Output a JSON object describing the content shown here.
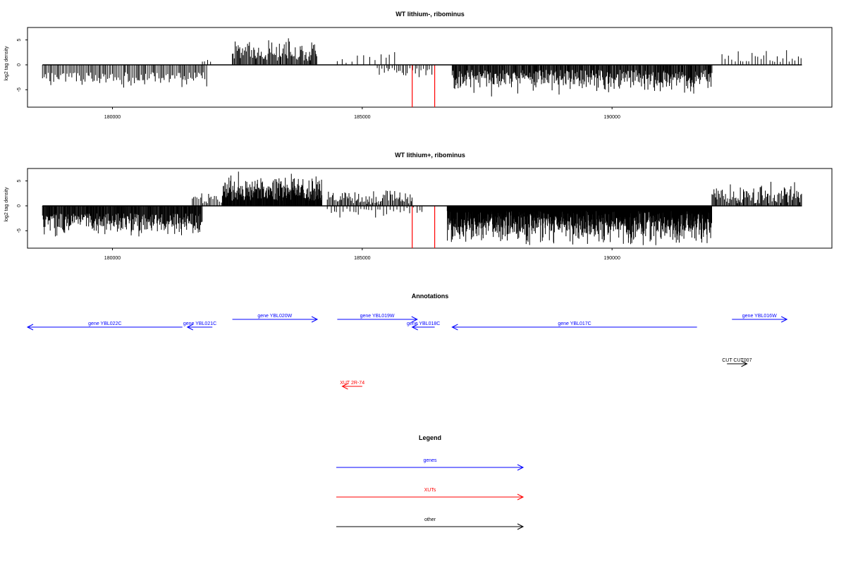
{
  "colors": {
    "genes": "#0000ff",
    "xuts": "#ff0000",
    "other": "#000000",
    "bars": "#000000"
  },
  "chart_data": [
    {
      "type": "bar",
      "title": "WT lithium-, ribominus",
      "xlabel": "",
      "ylabel": "log2 tag density",
      "xlim": [
        178300,
        194400
      ],
      "ylim": [
        -8.5,
        7.5
      ],
      "x_ticks": [
        180000,
        185000,
        190000
      ],
      "y_ticks": [
        5,
        0,
        -5
      ],
      "grid": false,
      "series": [
        {
          "values_description": "",
          "segments": [
            {
              "start": 178600,
              "end": 181900,
              "sign": -1,
              "min": 1.5,
              "max": 4.7,
              "step": 28
            },
            {
              "start": 181800,
              "end": 182000,
              "sign": 1,
              "min": 0.5,
              "max": 2.8,
              "step": 45
            },
            {
              "start": 182400,
              "end": 184100,
              "sign": 1,
              "min": 0.8,
              "max": 6.0,
              "step": 18
            },
            {
              "start": 184500,
              "end": 185700,
              "sign": 1,
              "min": 0.3,
              "max": 3.0,
              "step": 90
            },
            {
              "start": 185300,
              "end": 186400,
              "sign": -1,
              "min": 0.6,
              "max": 3.2,
              "step": 40
            },
            {
              "start": 186800,
              "end": 192000,
              "sign": -1,
              "min": 1.0,
              "max": 6.5,
              "step": 14
            },
            {
              "start": 192200,
              "end": 193800,
              "sign": 1,
              "min": 0.5,
              "max": 3.3,
              "step": 55
            }
          ],
          "highlight": [
            {
              "x": 186000,
              "value": -8.5
            },
            {
              "x": 186450,
              "value": -8.5
            }
          ]
        }
      ]
    },
    {
      "type": "bar",
      "title": "WT lithium+, ribominus",
      "xlabel": "",
      "ylabel": "log2 tag density",
      "xlim": [
        178300,
        194400
      ],
      "ylim": [
        -8.5,
        7.5
      ],
      "x_ticks": [
        180000,
        185000,
        190000
      ],
      "y_ticks": [
        5,
        0,
        -5
      ],
      "grid": false,
      "series": [
        {
          "values_description": "",
          "segments": [
            {
              "start": 178600,
              "end": 181800,
              "sign": -1,
              "min": 1.5,
              "max": 6.5,
              "step": 12
            },
            {
              "start": 181600,
              "end": 182200,
              "sign": 1,
              "min": 0.5,
              "max": 3.3,
              "step": 30
            },
            {
              "start": 182200,
              "end": 184200,
              "sign": 1,
              "min": 1.0,
              "max": 7.2,
              "step": 9
            },
            {
              "start": 184300,
              "end": 186000,
              "sign": 1,
              "min": 0.3,
              "max": 4.2,
              "step": 22
            },
            {
              "start": 184300,
              "end": 186200,
              "sign": -1,
              "min": 0.3,
              "max": 2.6,
              "step": 60
            },
            {
              "start": 186700,
              "end": 192000,
              "sign": -1,
              "min": 1.0,
              "max": 8.2,
              "step": 6
            },
            {
              "start": 192000,
              "end": 193800,
              "sign": 1,
              "min": 0.5,
              "max": 5.0,
              "step": 18
            }
          ],
          "highlight": [
            {
              "x": 186000,
              "value": -8.5
            },
            {
              "x": 186450,
              "value": -8.5
            }
          ]
        }
      ]
    }
  ],
  "annotations": {
    "title": "Annotations",
    "items": [
      {
        "label": "gene YBL022C",
        "type": "gene",
        "start": 178300,
        "end": 181400,
        "strand": "-",
        "row": 2
      },
      {
        "label": "gene YBL021C",
        "type": "gene",
        "start": 181500,
        "end": 182000,
        "strand": "-",
        "row": 2
      },
      {
        "label": "gene YBL020W",
        "type": "gene",
        "start": 182400,
        "end": 184100,
        "strand": "+",
        "row": 1
      },
      {
        "label": "gene YBL019W",
        "type": "gene",
        "start": 184500,
        "end": 186100,
        "strand": "+",
        "row": 1
      },
      {
        "label": "gene YBL018C",
        "type": "gene",
        "start": 186000,
        "end": 186450,
        "strand": "-",
        "row": 2
      },
      {
        "label": "gene YBL017C",
        "type": "gene",
        "start": 186800,
        "end": 191700,
        "strand": "-",
        "row": 2
      },
      {
        "label": "gene YBL016W",
        "type": "gene",
        "start": 192400,
        "end": 193500,
        "strand": "+",
        "row": 1
      },
      {
        "label": "CUT CUT007",
        "type": "other",
        "start": 192300,
        "end": 192700,
        "strand": "+",
        "row": 3
      },
      {
        "label": "XUT 2R-74",
        "type": "xut",
        "start": 184600,
        "end": 185000,
        "strand": "-",
        "row": 4
      }
    ]
  },
  "legend": {
    "title": "Legend",
    "items": [
      {
        "label": "genes",
        "type": "gene"
      },
      {
        "label": "XUTs",
        "type": "xut"
      },
      {
        "label": "other",
        "type": "other"
      }
    ]
  }
}
